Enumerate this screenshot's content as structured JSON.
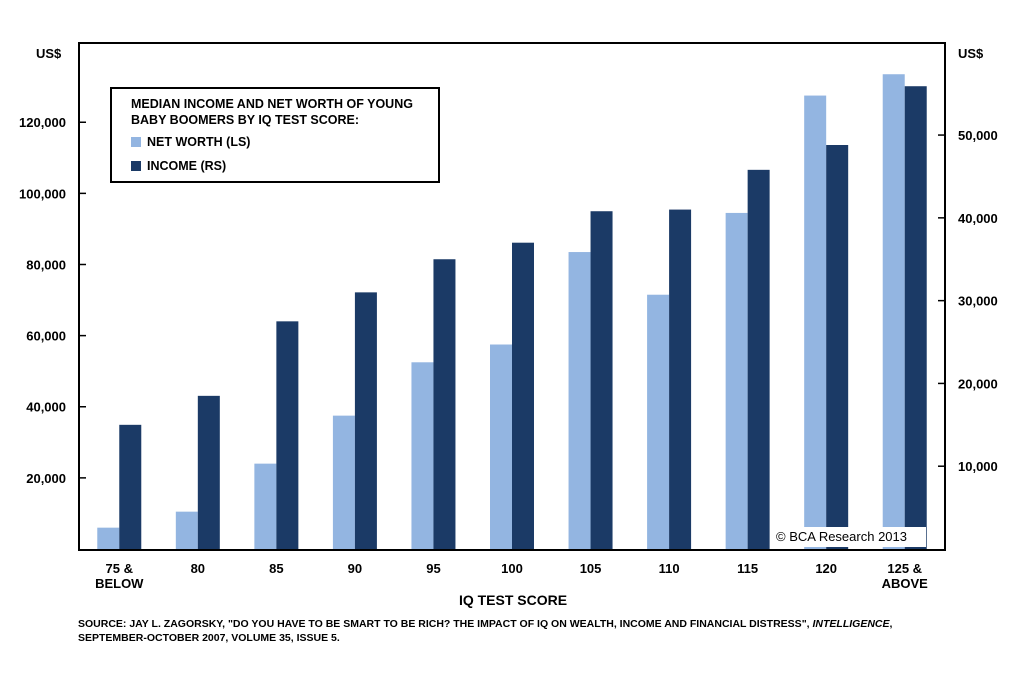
{
  "chart_data": {
    "type": "bar",
    "title": "MEDIAN INCOME AND NET WORTH OF YOUNG BABY BOOMERS BY IQ TEST SCORE:",
    "xlabel": "IQ TEST SCORE",
    "left_unit": "US$",
    "right_unit": "US$",
    "categories": [
      [
        "75 &",
        "BELOW"
      ],
      [
        "80"
      ],
      [
        "85"
      ],
      [
        "90"
      ],
      [
        "95"
      ],
      [
        "100"
      ],
      [
        "105"
      ],
      [
        "110"
      ],
      [
        "115"
      ],
      [
        "120"
      ],
      [
        "125 &",
        "ABOVE"
      ]
    ],
    "series": [
      {
        "name": "NET WORTH (LS)",
        "axis": "left",
        "color": "#93b5e1",
        "values": [
          6000,
          10500,
          24000,
          37500,
          52500,
          57500,
          83500,
          71500,
          94500,
          127500,
          133500
        ]
      },
      {
        "name": "INCOME (RS)",
        "axis": "right",
        "color": "#1b3a66",
        "values": [
          15000,
          18500,
          27500,
          31000,
          35000,
          37000,
          40800,
          41000,
          45800,
          48800,
          55900
        ]
      }
    ],
    "left_axis": {
      "min": 0,
      "max": 142000,
      "ticks": [
        20000,
        40000,
        60000,
        80000,
        100000,
        120000
      ],
      "tick_labels": [
        "20,000",
        "40,000",
        "60,000",
        "80,000",
        "100,000",
        "120,000"
      ]
    },
    "right_axis": {
      "min": 0,
      "max": 61000,
      "ticks": [
        10000,
        20000,
        30000,
        40000,
        50000
      ],
      "tick_labels": [
        "10,000",
        "20,000",
        "30,000",
        "40,000",
        "50,000"
      ]
    },
    "grid": false,
    "legend_position": "top-left"
  },
  "watermark": "© BCA Research 2013",
  "source": {
    "text_before": "SOURCE: JAY L. ZAGORSKY, \"DO YOU HAVE TO BE SMART TO BE RICH? THE IMPACT OF IQ ON WEALTH, INCOME AND FINANCIAL DISTRESS\", ",
    "journal": "INTELLIGENCE",
    "text_after": ",",
    "line2": "SEPTEMBER-OCTOBER 2007, VOLUME 35, ISSUE 5."
  }
}
